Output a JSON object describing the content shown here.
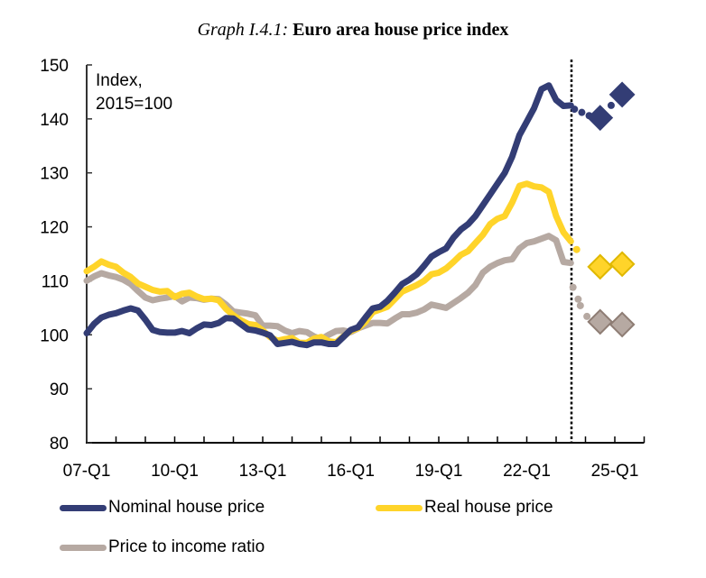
{
  "title": {
    "prefix": "Graph I.4.1:",
    "main": "Euro area house price index"
  },
  "chart_data": {
    "type": "line",
    "title": "Graph I.4.1: Euro area house price index",
    "unit_label": [
      "Index,",
      "2015=100"
    ],
    "xlabel": "",
    "ylabel": "",
    "ylim": [
      80,
      150
    ],
    "yticks": [
      80,
      90,
      100,
      110,
      120,
      130,
      140,
      150
    ],
    "x_start": "07-Q1",
    "x_ticks": [
      "07-Q1",
      "10-Q1",
      "13-Q1",
      "16-Q1",
      "19-Q1",
      "22-Q1",
      "25-Q1"
    ],
    "x_range_quarters": [
      0,
      76
    ],
    "forecast_start_marker": "23-Q3",
    "grid": false,
    "legend_position": "bottom",
    "series": [
      {
        "name": "Nominal house price",
        "color": "#333D75",
        "values": [
          100.3,
          102.0,
          103.2,
          103.7,
          104.0,
          104.5,
          104.9,
          104.5,
          102.8,
          100.9,
          100.5,
          100.4,
          100.4,
          100.7,
          100.3,
          101.2,
          101.9,
          101.8,
          102.2,
          103.1,
          103.0,
          102.0,
          101.0,
          100.8,
          100.4,
          99.9,
          98.3,
          98.5,
          98.7,
          98.3,
          98.1,
          98.6,
          98.6,
          98.3,
          98.3,
          99.6,
          100.9,
          101.4,
          103.2,
          104.9,
          105.2,
          106.3,
          107.8,
          109.4,
          110.2,
          111.2,
          112.8,
          114.5,
          115.3,
          116.0,
          118.0,
          119.5,
          120.5,
          122.0,
          124.0,
          126.0,
          128.0,
          130.0,
          133.0,
          137.0,
          139.5,
          142.0,
          145.5,
          146.2,
          143.5,
          142.4,
          142.5
        ],
        "forecast_dots": [
          [
            66.5,
            141.8
          ],
          [
            67.5,
            141.2
          ],
          [
            68.5,
            140.6
          ],
          [
            71.5,
            142.5
          ]
        ],
        "forecast_diamonds": [
          [
            70,
            140.2
          ],
          [
            73,
            144.5
          ]
        ]
      },
      {
        "name": "Real house price",
        "color": "#FFD42A",
        "values": [
          111.8,
          112.6,
          113.6,
          113.0,
          112.6,
          111.5,
          110.7,
          109.5,
          108.9,
          108.3,
          108.0,
          108.1,
          107.0,
          107.6,
          107.8,
          107.1,
          106.6,
          106.7,
          106.4,
          104.8,
          103.6,
          102.7,
          102.0,
          101.8,
          100.8,
          99.6,
          98.9,
          99.2,
          99.4,
          98.5,
          98.5,
          99.3,
          99.6,
          98.8,
          98.6,
          99.7,
          100.7,
          101.2,
          102.4,
          104.2,
          104.7,
          105.2,
          106.6,
          108.0,
          108.6,
          109.2,
          110.0,
          111.2,
          111.5,
          112.3,
          113.5,
          114.8,
          115.5,
          117.0,
          118.5,
          120.5,
          121.5,
          122.0,
          124.5,
          127.6,
          128.0,
          127.5,
          127.3,
          126.5,
          122.0,
          119.0,
          117.3
        ],
        "forecast_dots": [
          [
            66.8,
            115.8
          ]
        ],
        "forecast_diamonds": [
          [
            70,
            112.6
          ],
          [
            73,
            113.1
          ]
        ]
      },
      {
        "name": "Price to income ratio",
        "color": "#B6A9A2",
        "values": [
          110.0,
          110.8,
          111.4,
          111.0,
          110.7,
          110.2,
          109.4,
          108.1,
          106.9,
          106.4,
          106.7,
          106.9,
          107.2,
          106.2,
          106.9,
          106.8,
          106.5,
          106.7,
          106.6,
          105.6,
          104.3,
          104.1,
          103.9,
          103.6,
          101.7,
          101.7,
          101.6,
          100.8,
          100.3,
          100.7,
          100.5,
          99.7,
          99.2,
          100.0,
          100.7,
          100.8,
          100.5,
          101.2,
          101.7,
          102.2,
          102.2,
          102.1,
          103.0,
          103.8,
          103.8,
          104.1,
          104.7,
          105.6,
          105.3,
          105.0,
          105.9,
          106.8,
          107.8,
          109.2,
          111.5,
          112.6,
          113.3,
          113.8,
          114.0,
          116.0,
          117.0,
          117.3,
          117.8,
          118.3,
          117.5,
          113.5,
          113.3
        ],
        "forecast_dots": [
          [
            66.3,
            108.8
          ],
          [
            67.0,
            106.6
          ],
          [
            67.3,
            105.4
          ],
          [
            68.2,
            103.4
          ]
        ],
        "forecast_diamonds": [
          [
            70,
            102.4
          ],
          [
            73,
            101.9
          ]
        ]
      }
    ]
  },
  "legend": [
    {
      "label": "Nominal house price",
      "color": "#333D75"
    },
    {
      "label": "Real house price",
      "color": "#FFD42A"
    },
    {
      "label": "Price to income ratio",
      "color": "#B6A9A2"
    }
  ]
}
